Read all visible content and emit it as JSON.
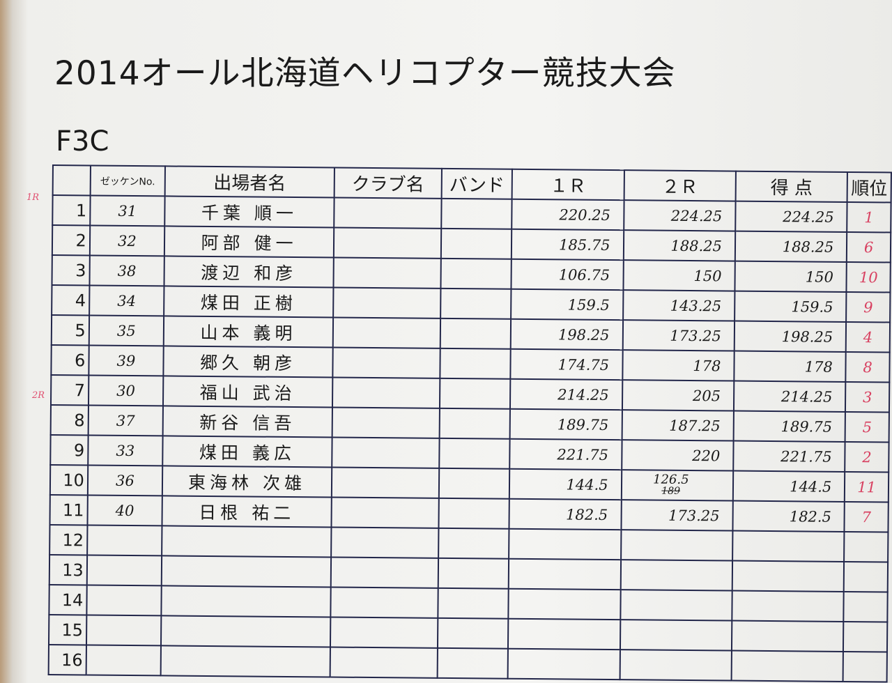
{
  "title": "2014オール北海道ヘリコプター競技大会",
  "category": "F3C",
  "margin_notes": [
    "1R",
    "2R"
  ],
  "headers": [
    "",
    "ゼッケンNo.",
    "出場者名",
    "クラブ名",
    "バンド",
    "１Ｒ",
    "２Ｒ",
    "得 点",
    "順位"
  ],
  "rows": [
    {
      "no": "1",
      "bib": "31",
      "name": "千葉 順一",
      "club": "",
      "band": "",
      "r1": "220.25",
      "r2": "224.25",
      "score": "224.25",
      "rank": "1"
    },
    {
      "no": "2",
      "bib": "32",
      "name": "阿部 健一",
      "club": "",
      "band": "",
      "r1": "185.75",
      "r2": "188.25",
      "score": "188.25",
      "rank": "6"
    },
    {
      "no": "3",
      "bib": "38",
      "name": "渡辺 和彦",
      "club": "",
      "band": "",
      "r1": "106.75",
      "r2": "150",
      "score": "150",
      "rank": "10"
    },
    {
      "no": "4",
      "bib": "34",
      "name": "煤田 正樹",
      "club": "",
      "band": "",
      "r1": "159.5",
      "r2": "143.25",
      "score": "159.5",
      "rank": "9"
    },
    {
      "no": "5",
      "bib": "35",
      "name": "山本 義明",
      "club": "",
      "band": "",
      "r1": "198.25",
      "r2": "173.25",
      "score": "198.25",
      "rank": "4"
    },
    {
      "no": "6",
      "bib": "39",
      "name": "郷久 朝彦",
      "club": "",
      "band": "",
      "r1": "174.75",
      "r2": "178",
      "score": "178",
      "rank": "8"
    },
    {
      "no": "7",
      "bib": "30",
      "name": "福山 武治",
      "club": "",
      "band": "",
      "r1": "214.25",
      "r2": "205",
      "score": "214.25",
      "rank": "3"
    },
    {
      "no": "8",
      "bib": "37",
      "name": "新谷 信吾",
      "club": "",
      "band": "",
      "r1": "189.75",
      "r2": "187.25",
      "score": "189.75",
      "rank": "5"
    },
    {
      "no": "9",
      "bib": "33",
      "name": "煤田 義広",
      "club": "",
      "band": "",
      "r1": "221.75",
      "r2": "220",
      "score": "221.75",
      "rank": "2"
    },
    {
      "no": "10",
      "bib": "36",
      "name": "東海林 次雄",
      "club": "",
      "band": "",
      "r1": "144.5",
      "r2": "126.5",
      "r2_struck": "189",
      "score": "144.5",
      "rank": "11"
    },
    {
      "no": "11",
      "bib": "40",
      "name": "日根 祐二",
      "club": "",
      "band": "",
      "r1": "182.5",
      "r2": "173.25",
      "score": "182.5",
      "rank": "7"
    },
    {
      "no": "12"
    },
    {
      "no": "13"
    },
    {
      "no": "14"
    },
    {
      "no": "15"
    },
    {
      "no": "16"
    }
  ]
}
